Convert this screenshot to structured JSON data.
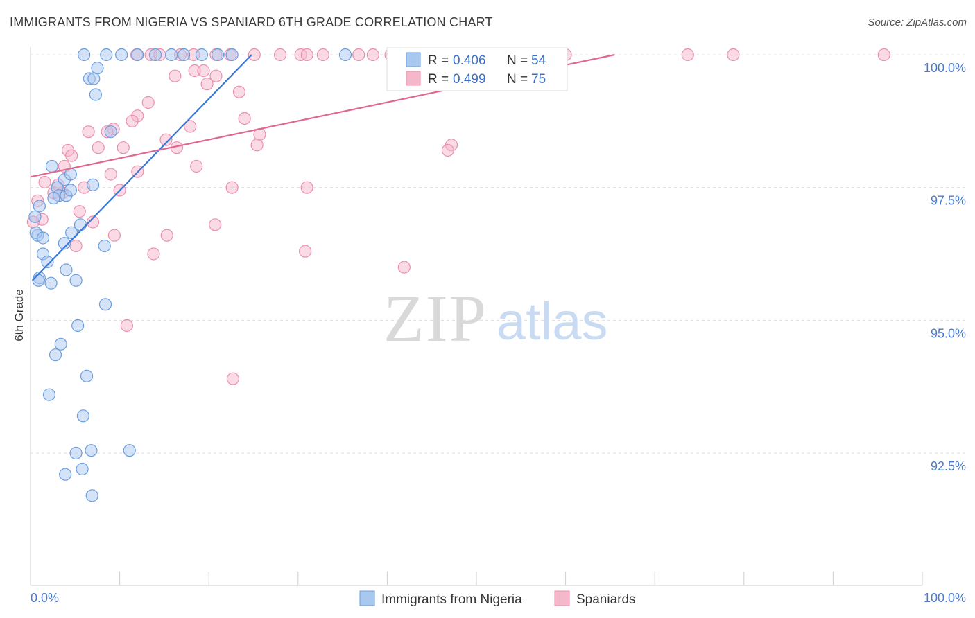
{
  "title": "IMMIGRANTS FROM NIGERIA VS SPANIARD 6TH GRADE CORRELATION CHART",
  "source": "Source: ZipAtlas.com",
  "watermark": {
    "zip": "ZIP",
    "atlas": "atlas"
  },
  "colors": {
    "nigeria_fill": "#a9c8ef",
    "nigeria_stroke": "#6a9ee0",
    "nigeria_line": "#3a78d6",
    "spaniard_fill": "#f5b8cb",
    "spaniard_stroke": "#eb8fad",
    "spaniard_line": "#e0688f",
    "grid": "#dddddd",
    "tick_text": "#4a7bd0"
  },
  "legend": {
    "rows": [
      {
        "r_label": "R =",
        "r_value": "0.406",
        "n_label": "N =",
        "n_value": "54"
      },
      {
        "r_label": "R =",
        "r_value": "0.499",
        "n_label": "N =",
        "n_value": "75"
      }
    ]
  },
  "chart_data": {
    "type": "scatter",
    "title": "IMMIGRANTS FROM NIGERIA VS SPANIARD 6TH GRADE CORRELATION CHART",
    "xlabel": "",
    "ylabel": "6th Grade",
    "xlim": [
      0,
      100
    ],
    "ylim": [
      90.3,
      100.2
    ],
    "x_tick_labels": [
      "0.0%",
      "100.0%"
    ],
    "y_ticks": [
      100.0,
      97.5,
      95.0,
      92.5
    ],
    "y_tick_labels": [
      "100.0%",
      "97.5%",
      "95.0%",
      "92.5%"
    ],
    "grid": true,
    "legend_position": "bottom",
    "series": [
      {
        "name": "Immigrants from Nigeria",
        "trend": {
          "x": [
            0.2,
            24.8
          ],
          "y": [
            95.75,
            100.0
          ]
        },
        "points": [
          [
            6.0,
            100.0
          ],
          [
            8.5,
            100.0
          ],
          [
            10.2,
            100.0
          ],
          [
            12.0,
            100.0
          ],
          [
            14.0,
            100.0
          ],
          [
            15.8,
            100.0
          ],
          [
            17.2,
            100.0
          ],
          [
            19.2,
            100.0
          ],
          [
            21.0,
            100.0
          ],
          [
            22.6,
            100.0
          ],
          [
            35.3,
            100.0
          ],
          [
            7.5,
            99.75
          ],
          [
            6.6,
            99.55
          ],
          [
            7.1,
            99.55
          ],
          [
            7.3,
            99.25
          ],
          [
            9.0,
            98.55
          ],
          [
            2.4,
            97.9
          ],
          [
            3.8,
            97.65
          ],
          [
            4.5,
            97.75
          ],
          [
            3.0,
            97.5
          ],
          [
            3.2,
            97.35
          ],
          [
            4.0,
            97.35
          ],
          [
            4.5,
            97.45
          ],
          [
            0.5,
            96.95
          ],
          [
            0.8,
            96.6
          ],
          [
            0.6,
            96.65
          ],
          [
            1.4,
            96.55
          ],
          [
            4.6,
            96.65
          ],
          [
            5.6,
            96.8
          ],
          [
            3.8,
            96.45
          ],
          [
            8.3,
            96.4
          ],
          [
            1.4,
            96.25
          ],
          [
            1.9,
            96.1
          ],
          [
            4.0,
            95.95
          ],
          [
            1.0,
            95.8
          ],
          [
            0.9,
            95.75
          ],
          [
            2.3,
            95.7
          ],
          [
            5.1,
            95.75
          ],
          [
            8.4,
            95.3
          ],
          [
            5.3,
            94.9
          ],
          [
            3.4,
            94.55
          ],
          [
            2.8,
            94.35
          ],
          [
            6.3,
            93.95
          ],
          [
            2.1,
            93.6
          ],
          [
            5.9,
            93.2
          ],
          [
            5.1,
            92.5
          ],
          [
            6.8,
            92.55
          ],
          [
            11.1,
            92.55
          ],
          [
            5.8,
            92.2
          ],
          [
            3.9,
            92.1
          ],
          [
            6.9,
            91.7
          ],
          [
            1.0,
            97.15
          ],
          [
            2.6,
            97.3
          ],
          [
            7.0,
            97.55
          ]
        ]
      },
      {
        "name": "Spaniards",
        "trend": {
          "x": [
            0.0,
            65.5
          ],
          "y": [
            97.7,
            100.0
          ]
        },
        "points": [
          [
            11.9,
            100.0
          ],
          [
            13.5,
            100.0
          ],
          [
            14.5,
            100.0
          ],
          [
            16.8,
            100.0
          ],
          [
            18.3,
            100.0
          ],
          [
            20.8,
            100.0
          ],
          [
            22.4,
            100.0
          ],
          [
            25.1,
            100.0
          ],
          [
            28.0,
            100.0
          ],
          [
            30.3,
            100.0
          ],
          [
            31.0,
            100.0
          ],
          [
            32.8,
            100.0
          ],
          [
            36.8,
            100.0
          ],
          [
            40.4,
            100.0
          ],
          [
            46.8,
            100.0
          ],
          [
            48.7,
            100.0
          ],
          [
            52.1,
            100.0
          ],
          [
            55.4,
            100.0
          ],
          [
            58.6,
            100.0
          ],
          [
            60.0,
            100.0
          ],
          [
            73.7,
            100.0
          ],
          [
            78.8,
            100.0
          ],
          [
            95.7,
            100.0
          ],
          [
            38.4,
            100.0
          ],
          [
            44.0,
            100.0
          ],
          [
            16.2,
            99.6
          ],
          [
            18.4,
            99.7
          ],
          [
            19.4,
            99.7
          ],
          [
            20.8,
            99.6
          ],
          [
            19.8,
            99.45
          ],
          [
            23.4,
            99.3
          ],
          [
            13.2,
            99.1
          ],
          [
            12.0,
            98.85
          ],
          [
            11.4,
            98.75
          ],
          [
            24.0,
            98.8
          ],
          [
            17.9,
            98.65
          ],
          [
            9.3,
            98.6
          ],
          [
            8.6,
            98.55
          ],
          [
            6.5,
            98.55
          ],
          [
            25.7,
            98.5
          ],
          [
            25.4,
            98.3
          ],
          [
            15.2,
            98.4
          ],
          [
            16.4,
            98.25
          ],
          [
            10.4,
            98.25
          ],
          [
            7.6,
            98.25
          ],
          [
            4.2,
            98.2
          ],
          [
            4.6,
            98.1
          ],
          [
            47.2,
            98.3
          ],
          [
            46.8,
            98.2
          ],
          [
            18.6,
            97.9
          ],
          [
            3.8,
            97.9
          ],
          [
            12.0,
            97.8
          ],
          [
            9.0,
            97.75
          ],
          [
            1.6,
            97.6
          ],
          [
            3.1,
            97.55
          ],
          [
            6.0,
            97.5
          ],
          [
            22.6,
            97.5
          ],
          [
            31.0,
            97.5
          ],
          [
            10.0,
            97.45
          ],
          [
            2.6,
            97.4
          ],
          [
            0.8,
            97.25
          ],
          [
            3.6,
            97.4
          ],
          [
            5.5,
            97.05
          ],
          [
            1.3,
            96.9
          ],
          [
            0.3,
            96.85
          ],
          [
            7.0,
            96.85
          ],
          [
            20.7,
            96.8
          ],
          [
            9.4,
            96.6
          ],
          [
            15.3,
            96.6
          ],
          [
            5.1,
            96.4
          ],
          [
            13.8,
            96.25
          ],
          [
            30.8,
            96.3
          ],
          [
            41.9,
            96.0
          ],
          [
            10.8,
            94.9
          ],
          [
            22.7,
            93.9
          ]
        ]
      }
    ]
  }
}
